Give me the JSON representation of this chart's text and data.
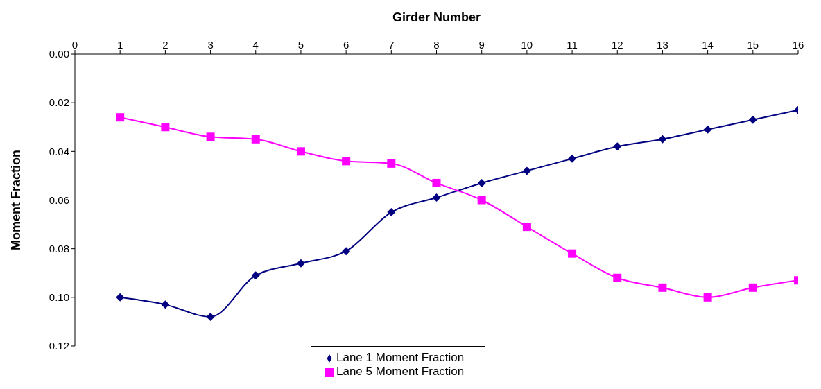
{
  "chart_data": {
    "type": "line",
    "xlabel": "Girder Number",
    "ylabel": "Moment Fraction",
    "x": [
      1,
      2,
      3,
      4,
      5,
      6,
      7,
      8,
      9,
      10,
      11,
      12,
      13,
      14,
      15,
      16
    ],
    "xlim": [
      0,
      16
    ],
    "xticks": [
      0,
      1,
      2,
      3,
      4,
      5,
      6,
      7,
      8,
      9,
      10,
      11,
      12,
      13,
      14,
      15,
      16
    ],
    "ylim": [
      0.12,
      0
    ],
    "yticks": [
      {
        "value": 0,
        "label": "0.00"
      },
      0.02,
      0.04,
      0.06,
      0.08,
      {
        "value": 0.1,
        "label": "0.10"
      },
      0.12
    ],
    "grid": false,
    "legend": "bottom",
    "series": [
      {
        "name": "Lane 1 Moment Fraction",
        "color": "#000080",
        "marker": "diamond",
        "values": [
          0.1,
          0.103,
          0.108,
          0.091,
          0.086,
          0.081,
          0.065,
          0.059,
          0.053,
          0.048,
          0.043,
          0.038,
          0.035,
          0.031,
          0.027,
          0.023
        ]
      },
      {
        "name": "Lane 5 Moment Fraction",
        "color": "#ff00ff",
        "marker": "square",
        "values": [
          0.026,
          0.03,
          0.034,
          0.035,
          0.04,
          0.044,
          0.045,
          0.053,
          0.06,
          0.071,
          0.082,
          0.092,
          0.096,
          0.1,
          0.096,
          0.093
        ]
      }
    ]
  }
}
